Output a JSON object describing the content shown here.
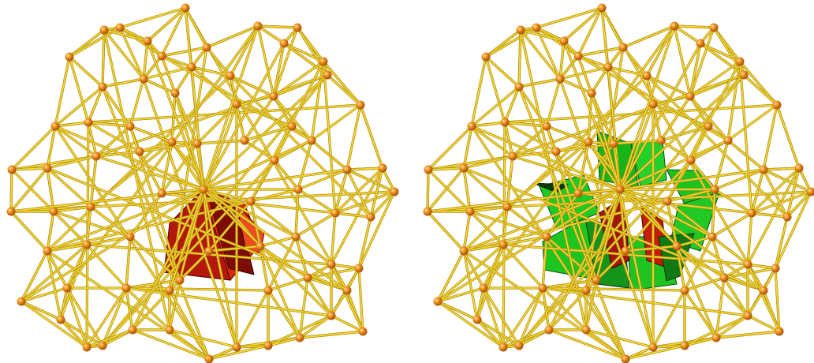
{
  "figure": {
    "panels": [
      {
        "id": "left",
        "description_text": "",
        "highlight_colors": [
          "#c51d0a",
          "#7f1005",
          "#e34b1f"
        ]
      },
      {
        "id": "right",
        "description_text": "",
        "highlight_colors": [
          "#1bc21b",
          "#13931b",
          "#c51d0a"
        ]
      }
    ],
    "style": {
      "edge_color": "#f2da2f",
      "edge_shadow": "#b58e18",
      "vertex_color": "#e9850f",
      "vertex_highlight": "#ffd47a"
    }
  }
}
